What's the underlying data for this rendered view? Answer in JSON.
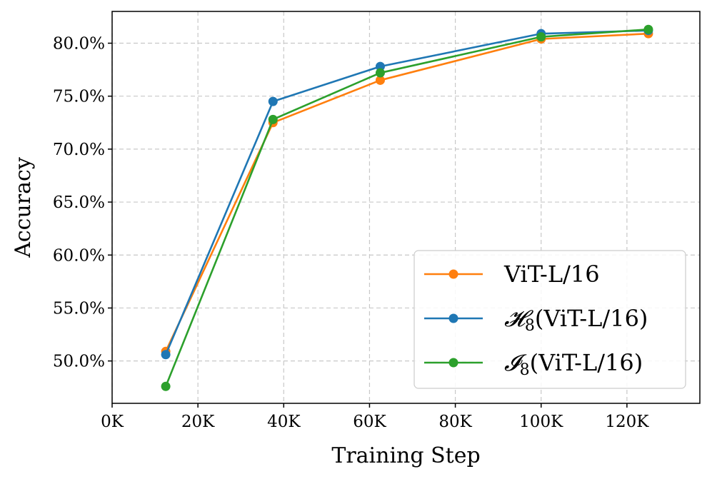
{
  "chart_data": {
    "type": "line",
    "xlabel": "Training Step",
    "ylabel": "Accuracy",
    "xlim": [
      0,
      137000
    ],
    "ylim": [
      46.0,
      83.0
    ],
    "xticks": [
      0,
      20000,
      40000,
      60000,
      80000,
      100000,
      120000
    ],
    "xtick_labels": [
      "0K",
      "20K",
      "40K",
      "60K",
      "80K",
      "100K",
      "120K"
    ],
    "yticks": [
      50,
      55,
      60,
      65,
      70,
      75,
      80
    ],
    "ytick_labels": [
      "50.0%",
      "55.0%",
      "60.0%",
      "65.0%",
      "70.0%",
      "75.0%",
      "80.0%"
    ],
    "grid": true,
    "legend_position": "lower-right",
    "series": [
      {
        "name": "ViT-L/16",
        "color": "#ff7f0e",
        "x": [
          12500,
          37500,
          62500,
          100000,
          125000
        ],
        "y": [
          50.9,
          72.5,
          76.5,
          80.4,
          80.9
        ]
      },
      {
        "name": "H8(ViT-L/16)",
        "legend_prefix": "𝓗",
        "legend_sub": "8",
        "legend_suffix": "(ViT-L/16)",
        "color": "#1f77b4",
        "x": [
          12500,
          37500,
          62500,
          100000,
          125000
        ],
        "y": [
          50.6,
          74.5,
          77.8,
          80.9,
          81.2
        ]
      },
      {
        "name": "I8(ViT-L/16)",
        "legend_prefix": "𝓘",
        "legend_sub": "8",
        "legend_suffix": "(ViT-L/16)",
        "color": "#2ca02c",
        "x": [
          12500,
          37500,
          62500,
          100000,
          125000
        ],
        "y": [
          47.6,
          72.8,
          77.2,
          80.6,
          81.3
        ]
      }
    ]
  }
}
